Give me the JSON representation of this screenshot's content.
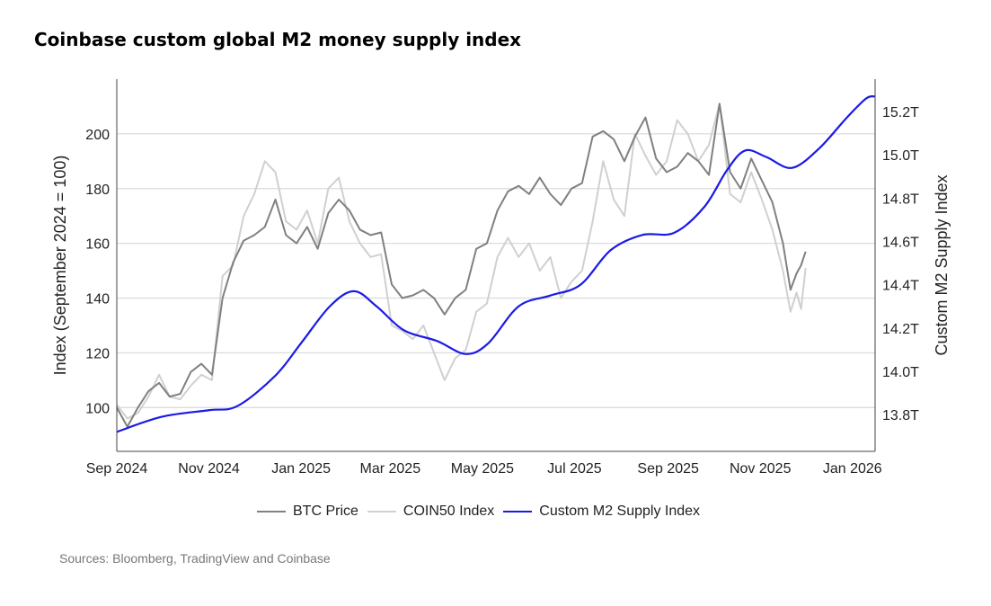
{
  "title": "Coinbase custom global M2 money supply index",
  "sources": "Sources: Bloomberg, TradingView and Coinbase",
  "chart_data": {
    "type": "line",
    "title": "Coinbase custom global M2 money supply index",
    "ylabel": "Index (September 2024 = 100)",
    "y2label": "Custom M2 Supply Index",
    "xlim": [
      "2024-09-01",
      "2026-01-16"
    ],
    "ylim": [
      84,
      220
    ],
    "y2lim": [
      13.63,
      15.35
    ],
    "grid": true,
    "legend_position": "bottom",
    "x_ticks": [
      {
        "date": "2024-09-01",
        "label": "Sep 2024"
      },
      {
        "date": "2024-11-01",
        "label": "Nov 2024"
      },
      {
        "date": "2025-01-01",
        "label": "Jan 2025"
      },
      {
        "date": "2025-03-01",
        "label": "Mar 2025"
      },
      {
        "date": "2025-05-01",
        "label": "May 2025"
      },
      {
        "date": "2025-07-01",
        "label": "Jul 2025"
      },
      {
        "date": "2025-09-01",
        "label": "Sep 2025"
      },
      {
        "date": "2025-11-01",
        "label": "Nov 2025"
      },
      {
        "date": "2026-01-01",
        "label": "Jan 2026"
      }
    ],
    "y_ticks": [
      100,
      120,
      140,
      160,
      180,
      200
    ],
    "y2_ticks": [
      {
        "value": 13.8,
        "label": "13.8T"
      },
      {
        "value": 14.0,
        "label": "14.0T"
      },
      {
        "value": 14.2,
        "label": "14.2T"
      },
      {
        "value": 14.4,
        "label": "14.4T"
      },
      {
        "value": 14.6,
        "label": "14.6T"
      },
      {
        "value": 14.8,
        "label": "14.8T"
      },
      {
        "value": 15.0,
        "label": "15.0T"
      },
      {
        "value": 15.2,
        "label": "15.2T"
      }
    ],
    "series": [
      {
        "name": "COIN50 Index",
        "axis": "left",
        "color": "#d0d0d0",
        "x": [
          "2024-09-01",
          "2024-09-08",
          "2024-09-15",
          "2024-09-22",
          "2024-09-29",
          "2024-10-06",
          "2024-10-13",
          "2024-10-20",
          "2024-10-27",
          "2024-11-03",
          "2024-11-10",
          "2024-11-17",
          "2024-11-24",
          "2024-12-01",
          "2024-12-08",
          "2024-12-15",
          "2024-12-22",
          "2024-12-29",
          "2025-01-05",
          "2025-01-12",
          "2025-01-19",
          "2025-01-26",
          "2025-02-02",
          "2025-02-09",
          "2025-02-16",
          "2025-02-23",
          "2025-03-02",
          "2025-03-09",
          "2025-03-16",
          "2025-03-23",
          "2025-03-30",
          "2025-04-06",
          "2025-04-13",
          "2025-04-20",
          "2025-04-27",
          "2025-05-04",
          "2025-05-11",
          "2025-05-18",
          "2025-05-25",
          "2025-06-01",
          "2025-06-08",
          "2025-06-15",
          "2025-06-22",
          "2025-06-29",
          "2025-07-06",
          "2025-07-13",
          "2025-07-20",
          "2025-07-27",
          "2025-08-03",
          "2025-08-10",
          "2025-08-17",
          "2025-08-24",
          "2025-08-31",
          "2025-09-07",
          "2025-09-14",
          "2025-09-21",
          "2025-09-28",
          "2025-10-05",
          "2025-10-12",
          "2025-10-19",
          "2025-10-26",
          "2025-11-02",
          "2025-11-09",
          "2025-11-16",
          "2025-11-21",
          "2025-11-25",
          "2025-11-28",
          "2025-12-01"
        ],
        "values": [
          101,
          96,
          98,
          104,
          112,
          104,
          103,
          108,
          112,
          110,
          148,
          152,
          170,
          178,
          190,
          186,
          168,
          165,
          172,
          160,
          180,
          184,
          168,
          160,
          155,
          156,
          130,
          128,
          125,
          130,
          120,
          110,
          118,
          121,
          135,
          138,
          155,
          162,
          155,
          160,
          150,
          155,
          140,
          146,
          150,
          168,
          190,
          176,
          170,
          200,
          192,
          185,
          190,
          205,
          200,
          190,
          196,
          211,
          178,
          175,
          186,
          176,
          165,
          150,
          135,
          142,
          136,
          151
        ]
      },
      {
        "name": "BTC Price",
        "axis": "left",
        "color": "#808080",
        "x": [
          "2024-09-01",
          "2024-09-08",
          "2024-09-15",
          "2024-09-22",
          "2024-09-29",
          "2024-10-06",
          "2024-10-13",
          "2024-10-20",
          "2024-10-27",
          "2024-11-03",
          "2024-11-10",
          "2024-11-17",
          "2024-11-24",
          "2024-12-01",
          "2024-12-08",
          "2024-12-15",
          "2024-12-22",
          "2024-12-29",
          "2025-01-05",
          "2025-01-12",
          "2025-01-19",
          "2025-01-26",
          "2025-02-02",
          "2025-02-09",
          "2025-02-16",
          "2025-02-23",
          "2025-03-02",
          "2025-03-09",
          "2025-03-16",
          "2025-03-23",
          "2025-03-30",
          "2025-04-06",
          "2025-04-13",
          "2025-04-20",
          "2025-04-27",
          "2025-05-04",
          "2025-05-11",
          "2025-05-18",
          "2025-05-25",
          "2025-06-01",
          "2025-06-08",
          "2025-06-15",
          "2025-06-22",
          "2025-06-29",
          "2025-07-06",
          "2025-07-13",
          "2025-07-20",
          "2025-07-27",
          "2025-08-03",
          "2025-08-10",
          "2025-08-17",
          "2025-08-24",
          "2025-08-31",
          "2025-09-07",
          "2025-09-14",
          "2025-09-21",
          "2025-09-28",
          "2025-10-05",
          "2025-10-12",
          "2025-10-19",
          "2025-10-26",
          "2025-11-02",
          "2025-11-09",
          "2025-11-16",
          "2025-11-21",
          "2025-11-25",
          "2025-11-28",
          "2025-12-01"
        ],
        "values": [
          100,
          93,
          100,
          106,
          109,
          104,
          105,
          113,
          116,
          112,
          140,
          153,
          161,
          163,
          166,
          176,
          163,
          160,
          166,
          158,
          171,
          176,
          172,
          165,
          163,
          164,
          145,
          140,
          141,
          143,
          140,
          134,
          140,
          143,
          158,
          160,
          172,
          179,
          181,
          178,
          184,
          178,
          174,
          180,
          182,
          199,
          201,
          198,
          190,
          199,
          206,
          191,
          186,
          188,
          193,
          190,
          185,
          211,
          186,
          180,
          191,
          183,
          175,
          160,
          143,
          149,
          152,
          157
        ]
      },
      {
        "name": "Custom M2 Supply Index",
        "axis": "right",
        "color": "#1a1ae6",
        "unit": "T",
        "x": [
          "2024-09-01",
          "2024-10-01",
          "2024-11-01",
          "2024-11-20",
          "2024-12-15",
          "2025-01-01",
          "2025-01-20",
          "2025-02-05",
          "2025-02-20",
          "2025-03-10",
          "2025-04-01",
          "2025-04-20",
          "2025-05-05",
          "2025-05-25",
          "2025-06-15",
          "2025-07-05",
          "2025-07-25",
          "2025-08-15",
          "2025-09-05",
          "2025-09-25",
          "2025-10-10",
          "2025-10-22",
          "2025-11-05",
          "2025-11-22",
          "2025-12-10",
          "2025-12-28",
          "2026-01-10",
          "2026-01-16"
        ],
        "values": [
          13.72,
          13.79,
          13.82,
          13.84,
          13.98,
          14.13,
          14.3,
          14.37,
          14.3,
          14.19,
          14.14,
          14.08,
          14.13,
          14.3,
          14.35,
          14.4,
          14.56,
          14.63,
          14.64,
          14.76,
          14.93,
          15.02,
          14.99,
          14.94,
          15.03,
          15.17,
          15.26,
          15.27
        ]
      }
    ]
  },
  "legend": [
    {
      "label": "BTC Price",
      "color": "#808080"
    },
    {
      "label": "COIN50 Index",
      "color": "#d0d0d0"
    },
    {
      "label": "Custom M2 Supply Index",
      "color": "#1a1ae6"
    }
  ]
}
